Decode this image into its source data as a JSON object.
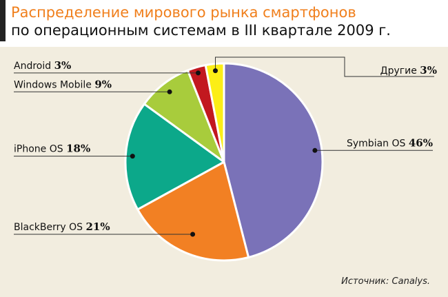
{
  "title": "Распределение мирового рынка смартфонов",
  "subtitle": "по операционным системам в III квартале 2009 г.",
  "source": "Источник: Canalys.",
  "colors": {
    "title": "#f07f1c",
    "background": "#f2eddf",
    "symbian": "#7a72b8",
    "blackberry": "#f28023",
    "iphone": "#0ca88a",
    "windows_mobile": "#a8cc3c",
    "android": "#c2181f",
    "other": "#fcee16"
  },
  "chart_data": {
    "type": "pie",
    "start": "12 o'clock",
    "direction": "clockwise",
    "slices": [
      {
        "name": "Symbian OS",
        "value": 46,
        "label": "46%",
        "color": "#7a72b8"
      },
      {
        "name": "BlackBerry OS",
        "value": 21,
        "label": "21%",
        "color": "#f28023"
      },
      {
        "name": "iPhone OS",
        "value": 18,
        "label": "18%",
        "color": "#0ca88a"
      },
      {
        "name": "Windows Mobile",
        "value": 9,
        "label": "9%",
        "color": "#a8cc3c"
      },
      {
        "name": "Android",
        "value": 3,
        "label": "3%",
        "color": "#c2181f"
      },
      {
        "name": "Другие",
        "value": 3,
        "label": "3%",
        "color": "#fcee16"
      }
    ]
  }
}
